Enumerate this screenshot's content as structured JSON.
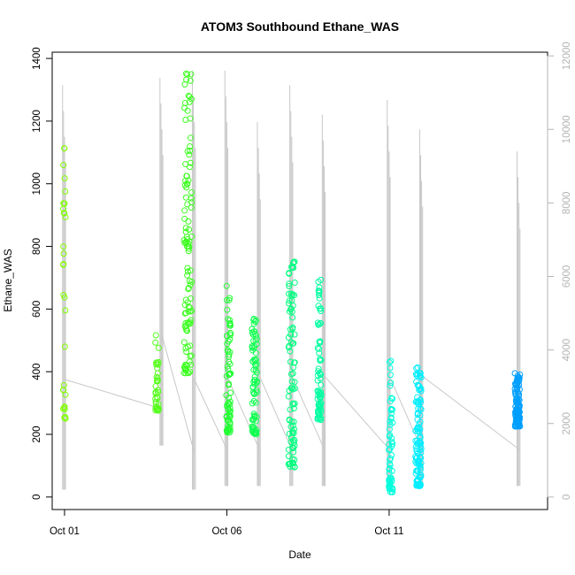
{
  "chart_data": {
    "type": "scatter",
    "title": "ATOM3 Southbound Ethane_WAS",
    "xlabel": "Date",
    "ylabel": "Ethane_WAS",
    "x_axis": {
      "type": "date",
      "ticks": [
        "Oct 01",
        "Oct 06",
        "Oct 11"
      ],
      "range": [
        "Sep 30 15:00",
        "Oct 15 21:00"
      ]
    },
    "y_axis": {
      "ticks": [
        0,
        200,
        400,
        600,
        800,
        1000,
        1200,
        1400
      ],
      "range": [
        -40,
        1420
      ]
    },
    "y2_axis": {
      "ticks": [
        0,
        2000,
        4000,
        6000,
        8000,
        10000,
        12000
      ],
      "range": [
        -340,
        12100
      ],
      "color": "#b5b5b5"
    },
    "grid": false,
    "colors": {
      "marker_scale": [
        "#7FFF00",
        "#00FF80",
        "#00FFFF",
        "#0099FF"
      ],
      "line": "#c8c8c8",
      "box": "#000000"
    },
    "secondary_line_segments": [
      {
        "x": "Oct 01",
        "y_min": 200,
        "y_max": 11200
      },
      {
        "x": "Oct 04",
        "y_min": 1400,
        "y_max": 11400
      },
      {
        "x": "Oct 05",
        "y_min": 200,
        "y_max": 11600
      },
      {
        "x": "Oct 06",
        "y_min": 300,
        "y_max": 11600
      },
      {
        "x": "Oct 07",
        "y_min": 300,
        "y_max": 10200
      },
      {
        "x": "Oct 08",
        "y_min": 300,
        "y_max": 11200
      },
      {
        "x": "Oct 09",
        "y_min": 300,
        "y_max": 10400
      },
      {
        "x": "Oct 11",
        "y_min": 300,
        "y_max": 10800
      },
      {
        "x": "Oct 12",
        "y_min": 300,
        "y_max": 10000
      },
      {
        "x": "Oct 15",
        "y_min": 300,
        "y_max": 9400
      }
    ],
    "series": [
      {
        "date": "Oct 01",
        "x_center": 1.0,
        "spread": 0.04,
        "ymin": 250,
        "ymax": 1175,
        "n": 30,
        "color": "#7FFF00"
      },
      {
        "date": "Oct 04",
        "x_center": 3.85,
        "spread": 0.05,
        "ymin": 275,
        "ymax": 535,
        "n": 35,
        "color": "#55FF1A"
      },
      {
        "date": "Oct 05",
        "x_center": 4.8,
        "spread": 0.12,
        "ymin": 395,
        "ymax": 1355,
        "n": 110,
        "color": "#3DFF20"
      },
      {
        "date": "Oct 06",
        "x_center": 6.05,
        "spread": 0.07,
        "ymin": 205,
        "ymax": 680,
        "n": 75,
        "color": "#22FF33"
      },
      {
        "date": "Oct 07",
        "x_center": 6.85,
        "spread": 0.08,
        "ymin": 200,
        "ymax": 580,
        "n": 75,
        "color": "#11FF50"
      },
      {
        "date": "Oct 08",
        "x_center": 8.0,
        "spread": 0.1,
        "ymin": 95,
        "ymax": 775,
        "n": 90,
        "color": "#00FF80"
      },
      {
        "date": "Oct 09",
        "x_center": 8.85,
        "spread": 0.06,
        "ymin": 245,
        "ymax": 700,
        "n": 70,
        "color": "#00FFA0"
      },
      {
        "date": "Oct 11",
        "x_center": 11.05,
        "spread": 0.06,
        "ymin": 15,
        "ymax": 435,
        "n": 60,
        "color": "#00FFDD"
      },
      {
        "date": "Oct 12",
        "x_center": 11.9,
        "spread": 0.09,
        "ymin": 35,
        "ymax": 420,
        "n": 110,
        "color": "#00EEFF"
      },
      {
        "date": "Oct 15",
        "x_center": 14.95,
        "spread": 0.08,
        "ymin": 225,
        "ymax": 395,
        "n": 100,
        "color": "#009FFF"
      }
    ]
  }
}
